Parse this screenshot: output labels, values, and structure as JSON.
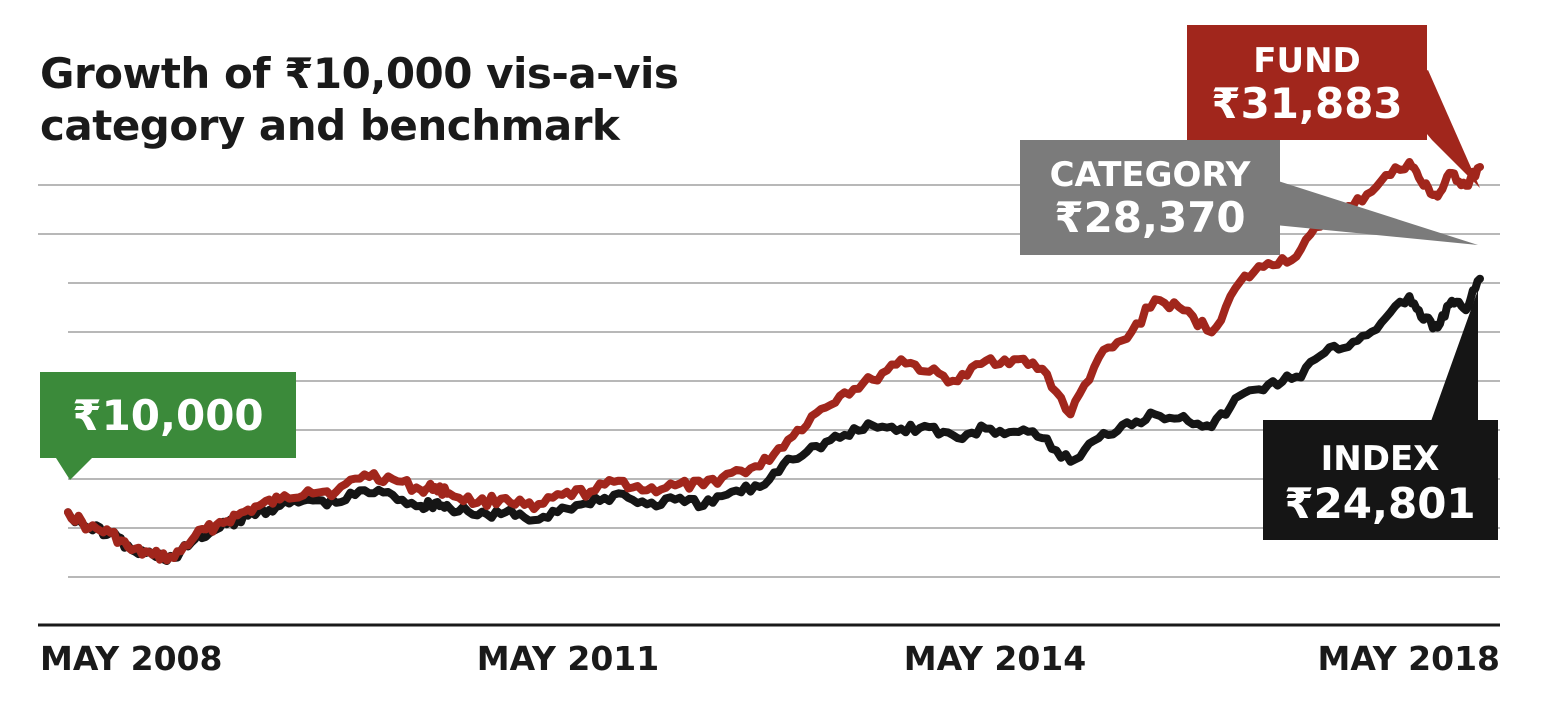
{
  "chart_data": {
    "type": "line",
    "title_lines": [
      "Growth of ₹10,000 vis-a-vis",
      "category and benchmark"
    ],
    "xlabel": "",
    "ylabel": "",
    "x_ticks": [
      "MAY 2008",
      "MAY 2011",
      "MAY 2014",
      "MAY 2018"
    ],
    "grid": true,
    "start_callout": {
      "value_label": "₹10,000",
      "value": 10000
    },
    "series": [
      {
        "name": "FUND",
        "value_label": "₹31,883",
        "final_value": 31883,
        "color": "#a1261c",
        "x": [
          2008.4,
          2008.55,
          2008.7,
          2008.85,
          2009.0,
          2009.15,
          2009.3,
          2009.45,
          2009.6,
          2009.75,
          2009.9,
          2010.1,
          2010.3,
          2010.5,
          2010.7,
          2010.9,
          2011.0,
          2011.1,
          2011.3,
          2011.5,
          2011.7,
          2011.9,
          2012.1,
          2012.3,
          2012.5,
          2012.7,
          2012.9,
          2013.1,
          2013.3,
          2013.5,
          2013.7,
          2013.9,
          2014.1,
          2014.3,
          2014.5,
          2014.7,
          2014.9,
          2015.1,
          2015.3,
          2015.5,
          2015.7,
          2015.9,
          2016.1,
          2016.3,
          2016.5,
          2016.7,
          2016.9,
          2017.1,
          2017.3,
          2017.5,
          2017.7,
          2017.9,
          2018.0,
          2018.1,
          2018.2,
          2018.3,
          2018.4
        ],
        "y": [
          10000,
          9000,
          8700,
          7600,
          7300,
          7100,
          8500,
          9200,
          9800,
          10400,
          10800,
          11400,
          11300,
          12400,
          12100,
          11400,
          11600,
          11200,
          10600,
          10900,
          10200,
          11100,
          11300,
          12000,
          11400,
          11700,
          11700,
          12500,
          12900,
          14600,
          16300,
          17600,
          18400,
          19700,
          18900,
          18300,
          19600,
          19700,
          19100,
          16200,
          19800,
          21000,
          23500,
          22800,
          21400,
          24600,
          25800,
          26200,
          28600,
          29400,
          31000,
          32200,
          30700,
          30000,
          31500,
          30700,
          31883
        ]
      },
      {
        "name": "CATEGORY",
        "value_label": "₹28,370",
        "final_value": 28370,
        "color": "#7b7b7b"
      },
      {
        "name": "INDEX",
        "value_label": "₹24,801",
        "final_value": 24801,
        "color": "#151515",
        "x": [
          2008.4,
          2008.55,
          2008.7,
          2008.85,
          2009.0,
          2009.15,
          2009.3,
          2009.45,
          2009.6,
          2009.75,
          2009.9,
          2010.1,
          2010.3,
          2010.5,
          2010.7,
          2010.9,
          2011.0,
          2011.1,
          2011.3,
          2011.5,
          2011.7,
          2011.9,
          2012.1,
          2012.3,
          2012.5,
          2012.7,
          2012.9,
          2013.1,
          2013.3,
          2013.5,
          2013.7,
          2013.9,
          2014.1,
          2014.3,
          2014.5,
          2014.7,
          2014.9,
          2015.1,
          2015.3,
          2015.5,
          2015.7,
          2015.9,
          2016.1,
          2016.3,
          2016.5,
          2016.7,
          2016.9,
          2017.1,
          2017.3,
          2017.5,
          2017.7,
          2017.9,
          2018.0,
          2018.1,
          2018.2,
          2018.3,
          2018.4
        ],
        "y": [
          10000,
          9000,
          8700,
          7600,
          7300,
          7100,
          8300,
          8900,
          9500,
          10100,
          10400,
          10800,
          10600,
          11400,
          11100,
          10400,
          10600,
          10300,
          9800,
          10000,
          9500,
          10300,
          10500,
          11200,
          10500,
          10800,
          10400,
          11300,
          11600,
          13400,
          14200,
          14900,
          15500,
          15300,
          15400,
          14700,
          15300,
          15100,
          14700,
          13200,
          14700,
          15700,
          16200,
          16100,
          15400,
          17400,
          18100,
          18600,
          20100,
          20800,
          22000,
          23700,
          22200,
          21700,
          23400,
          22800,
          24801
        ]
      }
    ]
  },
  "colors": {
    "fund": "#a1261c",
    "category_box": "#7b7b7b",
    "index_box": "#151515",
    "start_box": "#3b8a3a",
    "grid": "#b8b8b8",
    "axis": "#1a1a1a"
  }
}
